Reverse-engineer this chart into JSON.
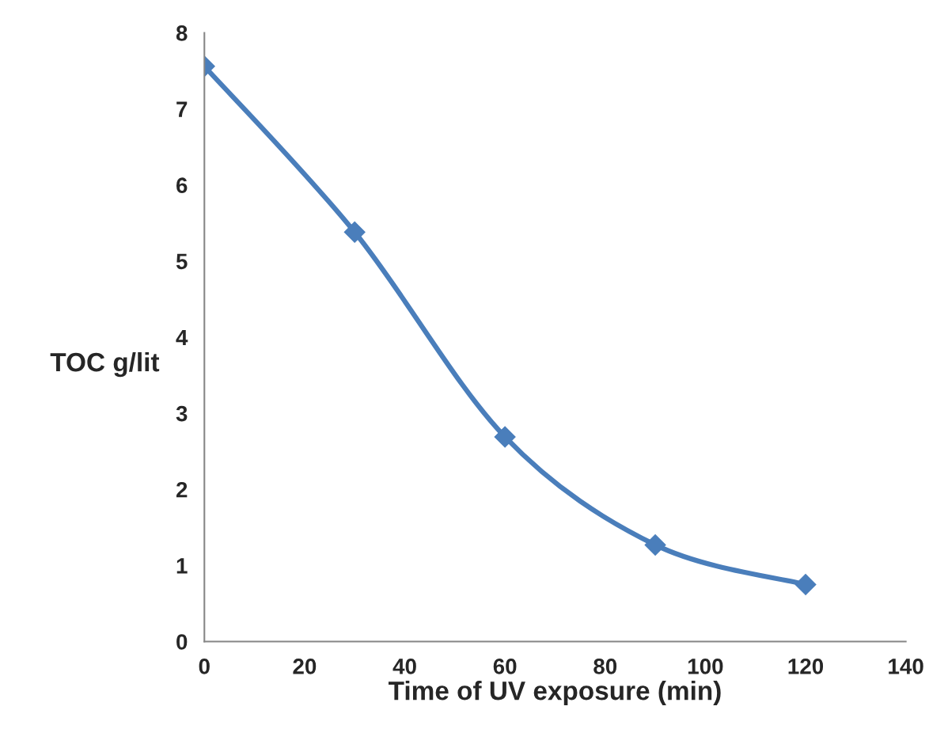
{
  "chart_data": {
    "type": "line",
    "xlabel": "Time of UV exposure (min)",
    "ylabel": "TOC g/lit",
    "x": [
      0,
      30,
      60,
      90,
      120
    ],
    "series": [
      {
        "color": "#4a7ebb",
        "values": [
          7.56,
          5.38,
          2.69,
          1.27,
          0.75
        ]
      }
    ],
    "xlim": [
      0,
      140
    ],
    "xticks": [
      0,
      20,
      40,
      60,
      80,
      100,
      120,
      140
    ],
    "ylim": [
      0,
      8
    ],
    "yticks": [
      0,
      1,
      2,
      3,
      4,
      5,
      6,
      7,
      8
    ],
    "marker": "diamond",
    "line_style": "solid",
    "grid": false,
    "legend": false
  }
}
